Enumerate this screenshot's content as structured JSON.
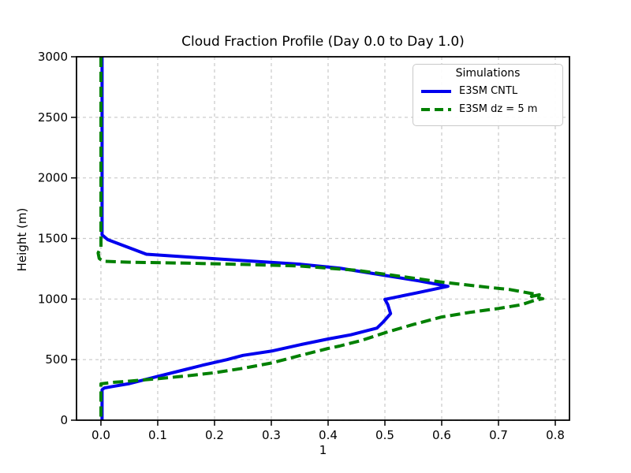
{
  "figure": {
    "title": "Cloud Fraction Profile (Day 0.0 to Day 1.0)",
    "xlabel": "1",
    "ylabel": "Height (m)"
  },
  "legend": {
    "title": "Simulations",
    "entries": [
      {
        "label": "E3SM CNTL",
        "color": "#0000ee",
        "linestyle": "solid"
      },
      {
        "label": "E3SM dz = 5 m",
        "color": "#008000",
        "linestyle": "dashed"
      }
    ]
  },
  "colors": {
    "background": "#ffffff",
    "spine": "#000000",
    "grid": "#c9c9c9",
    "blue_line": "#0000ee",
    "green_line": "#008000",
    "legend_border": "#c9c9c9"
  },
  "chart_data": {
    "type": "line",
    "title": "Cloud Fraction Profile (Day 0.0 to Day 1.0)",
    "xlabel": "1",
    "ylabel": "Height (m)",
    "xlim": [
      -0.043,
      0.825
    ],
    "ylim": [
      0,
      3000
    ],
    "xticks": [
      0.0,
      0.1,
      0.2,
      0.3,
      0.4,
      0.5,
      0.6,
      0.7,
      0.8
    ],
    "xtick_labels": [
      "0.0",
      "0.1",
      "0.2",
      "0.3",
      "0.4",
      "0.5",
      "0.6",
      "0.7",
      "0.8"
    ],
    "yticks": [
      0,
      500,
      1000,
      1500,
      2000,
      2500,
      3000
    ],
    "ytick_labels": [
      "0",
      "500",
      "1000",
      "1500",
      "2000",
      "2500",
      "3000"
    ],
    "grid": true,
    "legend_position": "upper right",
    "series": [
      {
        "name": "E3SM CNTL",
        "color": "#0000ee",
        "linestyle": "solid",
        "linewidth": 4,
        "points": [
          [
            0.002,
            3000
          ],
          [
            0.002,
            1530
          ],
          [
            0.012,
            1490
          ],
          [
            0.08,
            1370
          ],
          [
            0.15,
            1348
          ],
          [
            0.25,
            1318
          ],
          [
            0.35,
            1288
          ],
          [
            0.42,
            1255
          ],
          [
            0.5,
            1195
          ],
          [
            0.56,
            1150
          ],
          [
            0.611,
            1105
          ],
          [
            0.555,
            1050
          ],
          [
            0.5,
            997
          ],
          [
            0.505,
            955
          ],
          [
            0.51,
            880
          ],
          [
            0.497,
            810
          ],
          [
            0.486,
            760
          ],
          [
            0.44,
            705
          ],
          [
            0.4,
            670
          ],
          [
            0.35,
            622
          ],
          [
            0.3,
            570
          ],
          [
            0.25,
            535
          ],
          [
            0.222,
            500
          ],
          [
            0.18,
            455
          ],
          [
            0.15,
            420
          ],
          [
            0.1,
            362
          ],
          [
            0.05,
            302
          ],
          [
            0.02,
            278
          ],
          [
            0.006,
            266
          ],
          [
            0.002,
            252
          ],
          [
            0.002,
            0
          ]
        ]
      },
      {
        "name": "E3SM dz = 5 m",
        "color": "#008000",
        "linestyle": "dashed",
        "linewidth": 4,
        "points": [
          [
            0.0,
            3000
          ],
          [
            0.0,
            1430
          ],
          [
            -0.005,
            1380
          ],
          [
            -0.003,
            1335
          ],
          [
            0.004,
            1312
          ],
          [
            0.05,
            1304
          ],
          [
            0.15,
            1296
          ],
          [
            0.25,
            1286
          ],
          [
            0.35,
            1273
          ],
          [
            0.45,
            1237
          ],
          [
            0.5,
            1205
          ],
          [
            0.6,
            1140
          ],
          [
            0.68,
            1098
          ],
          [
            0.72,
            1078
          ],
          [
            0.756,
            1048
          ],
          [
            0.772,
            1035
          ],
          [
            0.758,
            1022
          ],
          [
            0.778,
            1003
          ],
          [
            0.764,
            990
          ],
          [
            0.74,
            953
          ],
          [
            0.7,
            922
          ],
          [
            0.65,
            890
          ],
          [
            0.6,
            852
          ],
          [
            0.55,
            790
          ],
          [
            0.5,
            722
          ],
          [
            0.46,
            660
          ],
          [
            0.42,
            612
          ],
          [
            0.4,
            592
          ],
          [
            0.35,
            533
          ],
          [
            0.3,
            472
          ],
          [
            0.25,
            428
          ],
          [
            0.2,
            392
          ],
          [
            0.15,
            365
          ],
          [
            0.1,
            342
          ],
          [
            0.05,
            322
          ],
          [
            0.02,
            312
          ],
          [
            0.0,
            300
          ],
          [
            0.0,
            0
          ]
        ]
      }
    ]
  }
}
